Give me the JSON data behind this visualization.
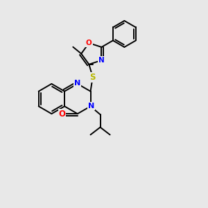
{
  "background_color": "#e8e8e8",
  "bond_color": "#000000",
  "atom_colors": {
    "N": "#0000ff",
    "O": "#ff0000",
    "S": "#b8b800",
    "C": "#000000"
  },
  "bond_width": 1.4,
  "figsize": [
    3.0,
    3.0
  ],
  "dpi": 100
}
